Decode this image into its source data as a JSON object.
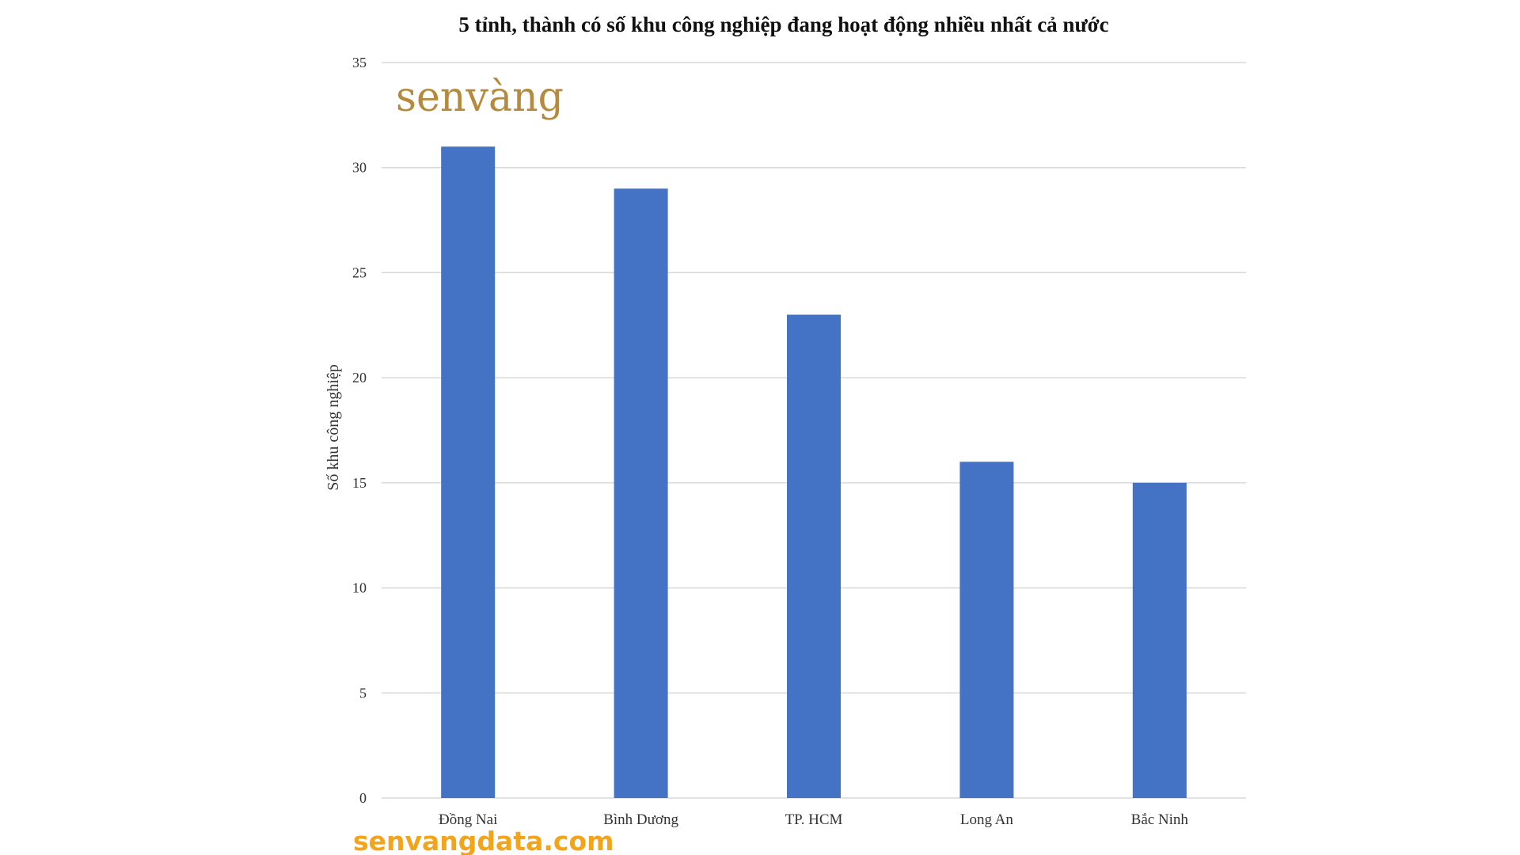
{
  "branding": {
    "logo_text": "senvàng",
    "watermark": "senvangdata.com",
    "logo_color": "#b58a3c",
    "watermark_color": "#f2a51a"
  },
  "chart_data": {
    "type": "bar",
    "title": "5 tỉnh, thành có số khu công nghiệp đang hoạt động nhiều nhất cả nước",
    "xlabel": "",
    "ylabel": "Số khu công nghiệp",
    "categories": [
      "Đồng Nai",
      "Bình Dương",
      "TP. HCM",
      "Long An",
      "Bắc Ninh"
    ],
    "values": [
      31,
      29,
      23,
      16,
      15
    ],
    "ylim": [
      0,
      35
    ],
    "yticks": [
      0,
      5,
      10,
      15,
      20,
      25,
      30,
      35
    ],
    "grid": true,
    "legend": "none",
    "bar_color": "#4472c4"
  }
}
